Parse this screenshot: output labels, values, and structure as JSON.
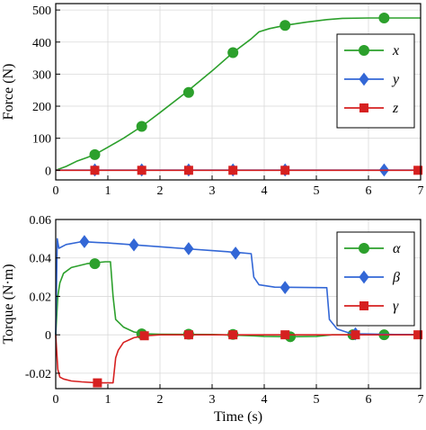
{
  "colors": {
    "green": "#2ca02c",
    "blue": "#3367d6",
    "red": "#d62020",
    "grid": "#d9d9d9"
  },
  "chart_data": [
    {
      "type": "line",
      "xlabel": "",
      "ylabel": "Force (N)",
      "xlim": [
        0,
        7
      ],
      "ylim": [
        -30,
        520
      ],
      "xticks": [
        "0",
        "1",
        "2",
        "3",
        "4",
        "5",
        "6",
        "7"
      ],
      "yticks": [
        "0",
        "100",
        "200",
        "300",
        "400",
        "500"
      ],
      "ytick_values": [
        0,
        100,
        200,
        300,
        400,
        500
      ],
      "grid": true,
      "legend_position": "right",
      "series": [
        {
          "name": "x",
          "color": "#2ca02c",
          "marker": "circle",
          "x": [
            0,
            0.2,
            0.4,
            0.6,
            0.75,
            1.0,
            1.3,
            1.65,
            2.0,
            2.5,
            3.0,
            3.4,
            3.75,
            3.9,
            4.1,
            4.4,
            4.8,
            5.2,
            5.5,
            6.0,
            6.3,
            6.6,
            7.0
          ],
          "y": [
            0,
            12,
            28,
            40,
            49,
            72,
            100,
            137,
            180,
            243,
            310,
            367,
            410,
            432,
            442,
            452,
            462,
            470,
            474,
            475,
            475,
            475,
            475
          ],
          "marker_x": [
            0.75,
            1.65,
            2.55,
            3.4,
            4.4,
            6.3
          ],
          "marker_y": [
            49,
            137,
            243,
            367,
            452,
            475
          ]
        },
        {
          "name": "y",
          "color": "#3367d6",
          "marker": "diamond",
          "x": [
            0,
            7.0
          ],
          "y": [
            1,
            1
          ],
          "marker_x": [
            0.75,
            1.65,
            2.55,
            3.4,
            4.4,
            6.3
          ],
          "marker_y": [
            1,
            1,
            1,
            1,
            1,
            1
          ]
        },
        {
          "name": "z",
          "color": "#d62020",
          "marker": "square",
          "x": [
            0,
            7.0
          ],
          "y": [
            0,
            0
          ],
          "marker_x": [
            0.75,
            1.65,
            2.55,
            3.4,
            4.4,
            6.95
          ],
          "marker_y": [
            0,
            0,
            0,
            0,
            0,
            0
          ]
        }
      ]
    },
    {
      "type": "line",
      "xlabel": "Time (s)",
      "ylabel": "Torque (N·m)",
      "xlim": [
        0,
        7
      ],
      "ylim": [
        -0.028,
        0.06
      ],
      "xticks": [
        "0",
        "1",
        "2",
        "3",
        "4",
        "5",
        "6",
        "7"
      ],
      "yticks": [
        "-0.02",
        "0",
        "0.02",
        "0.04",
        "0.06"
      ],
      "ytick_values": [
        -0.02,
        0,
        0.02,
        0.04,
        0.06
      ],
      "grid": true,
      "legend_position": "right",
      "series": [
        {
          "name": "α",
          "color": "#2ca02c",
          "marker": "circle",
          "x": [
            0,
            0.04,
            0.08,
            0.15,
            0.3,
            0.6,
            0.95,
            1.05,
            1.1,
            1.15,
            1.3,
            1.5,
            1.7,
            2.0,
            3.0,
            3.8,
            4.0,
            4.5,
            5.0,
            5.3,
            6.0,
            7.0
          ],
          "y": [
            0,
            0.02,
            0.027,
            0.032,
            0.035,
            0.037,
            0.038,
            0.038,
            0.02,
            0.008,
            0.004,
            0.0015,
            0.0005,
            0.0003,
            0.0002,
            -0.0005,
            -0.0008,
            -0.001,
            -0.0008,
            0,
            0,
            0
          ],
          "marker_x": [
            0.75,
            1.65,
            2.55,
            3.4,
            4.5,
            5.7,
            6.3
          ],
          "marker_y": [
            0.037,
            0.0005,
            0.0003,
            0.0002,
            -0.001,
            0,
            0
          ]
        },
        {
          "name": "β",
          "color": "#3367d6",
          "marker": "diamond",
          "x": [
            0,
            0.03,
            0.06,
            0.2,
            0.5,
            0.8,
            1.0,
            1.5,
            2.0,
            2.5,
            3.0,
            3.5,
            3.75,
            3.8,
            3.9,
            4.2,
            5.2,
            5.25,
            5.4,
            5.6,
            5.8,
            6.5,
            7.0
          ],
          "y": [
            0,
            0.05,
            0.045,
            0.047,
            0.0485,
            0.048,
            0.0478,
            0.0468,
            0.0458,
            0.0448,
            0.0438,
            0.0428,
            0.0422,
            0.03,
            0.026,
            0.0248,
            0.0245,
            0.008,
            0.003,
            0.0012,
            0.0005,
            0.0002,
            0.0002
          ],
          "marker_x": [
            0.55,
            1.5,
            2.55,
            3.45,
            4.4,
            5.75
          ],
          "marker_y": [
            0.0485,
            0.0468,
            0.0448,
            0.0425,
            0.0246,
            0.0005
          ]
        },
        {
          "name": "γ",
          "color": "#d62020",
          "marker": "square",
          "x": [
            0,
            0.04,
            0.08,
            0.15,
            0.3,
            0.5,
            0.8,
            1.0,
            1.1,
            1.15,
            1.2,
            1.3,
            1.5,
            1.7,
            2.0,
            3.0,
            4.0,
            5.0,
            6.0,
            7.0
          ],
          "y": [
            0,
            -0.018,
            -0.022,
            -0.023,
            -0.024,
            -0.0245,
            -0.025,
            -0.025,
            -0.025,
            -0.012,
            -0.008,
            -0.004,
            -0.0015,
            -0.0005,
            0,
            0,
            0,
            0,
            0,
            0
          ],
          "marker_x": [
            0.8,
            1.7,
            2.55,
            3.4,
            4.4,
            5.75,
            6.95
          ],
          "marker_y": [
            -0.025,
            -0.0005,
            0,
            0,
            0,
            0,
            0
          ]
        }
      ]
    }
  ]
}
